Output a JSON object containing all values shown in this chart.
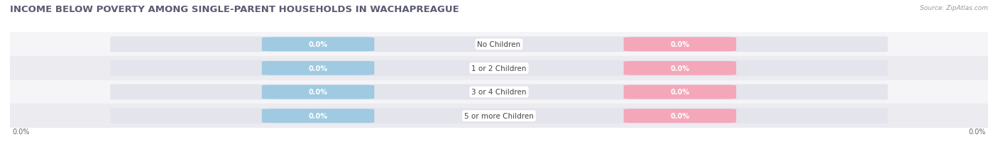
{
  "title": "INCOME BELOW POVERTY AMONG SINGLE-PARENT HOUSEHOLDS IN WACHAPREAGUE",
  "source": "Source: ZipAtlas.com",
  "categories": [
    "No Children",
    "1 or 2 Children",
    "3 or 4 Children",
    "5 or more Children"
  ],
  "single_father_values": [
    0.0,
    0.0,
    0.0,
    0.0
  ],
  "single_mother_values": [
    0.0,
    0.0,
    0.0,
    0.0
  ],
  "father_color": "#9fcae1",
  "mother_color": "#f4a7b9",
  "bar_track_color": "#e4e4ec",
  "row_bg_even": "#f5f5f8",
  "row_bg_odd": "#ebebf0",
  "axis_label_left": "0.0%",
  "axis_label_right": "0.0%",
  "figsize": [
    14.06,
    2.32
  ],
  "dpi": 100,
  "bar_height": 0.62,
  "title_fontsize": 9.5,
  "title_color": "#5a5a72",
  "source_color": "#999999"
}
